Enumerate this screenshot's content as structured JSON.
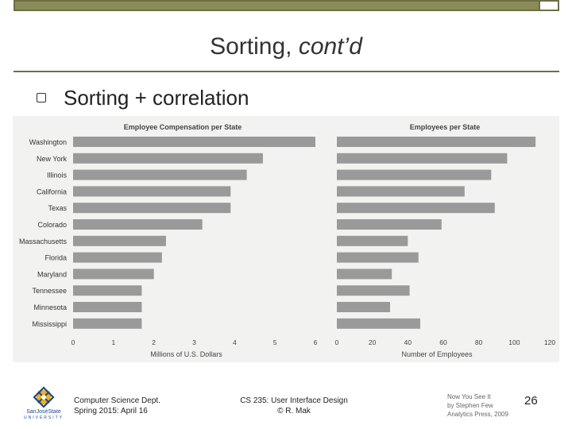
{
  "slide": {
    "title_main": "Sorting,",
    "title_italic": "cont’d",
    "bullet": "Sorting + correlation"
  },
  "footer": {
    "dept": "Computer Science Dept.",
    "date": "Spring 2015: April 16",
    "course": "CS 235: User Interface Design",
    "author": "© R. Mak",
    "book1": "Now You See It",
    "book2": "by Stephen Few",
    "book3": "Analytics Press, 2009",
    "page": "26",
    "logo1": "SanJoséState",
    "logo2": "UNIVERSITY"
  },
  "colors": {
    "bar": "#9a9a9a",
    "rule": "#6e6e44",
    "topbar": "#8b8b5a"
  },
  "chart_data": [
    {
      "type": "bar",
      "orientation": "horizontal",
      "title": "Employee Compensation per State",
      "xlabel": "Millions of U.S. Dollars",
      "categories": [
        "Washington",
        "New York",
        "Illinois",
        "California",
        "Texas",
        "Colorado",
        "Massachusetts",
        "Florida",
        "Maryland",
        "Tennessee",
        "Minnesota",
        "Mississippi"
      ],
      "values": [
        6.0,
        4.7,
        4.3,
        3.9,
        3.9,
        3.2,
        2.3,
        2.2,
        2.0,
        1.7,
        1.7,
        1.7
      ],
      "xlim": [
        0,
        6
      ],
      "xticks": [
        "0",
        "1",
        "2",
        "3",
        "4",
        "5",
        "6"
      ]
    },
    {
      "type": "bar",
      "orientation": "horizontal",
      "title": "Employees per State",
      "xlabel": "Number of Employees",
      "categories": [
        "Washington",
        "New York",
        "Illinois",
        "California",
        "Texas",
        "Colorado",
        "Massachusetts",
        "Florida",
        "Maryland",
        "Tennessee",
        "Minnesota",
        "Mississippi"
      ],
      "values": [
        112,
        96,
        87,
        72,
        89,
        59,
        40,
        46,
        31,
        41,
        30,
        47
      ],
      "xlim": [
        0,
        120
      ],
      "xticks": [
        "0",
        "20",
        "40",
        "60",
        "80",
        "100",
        "120"
      ]
    }
  ]
}
